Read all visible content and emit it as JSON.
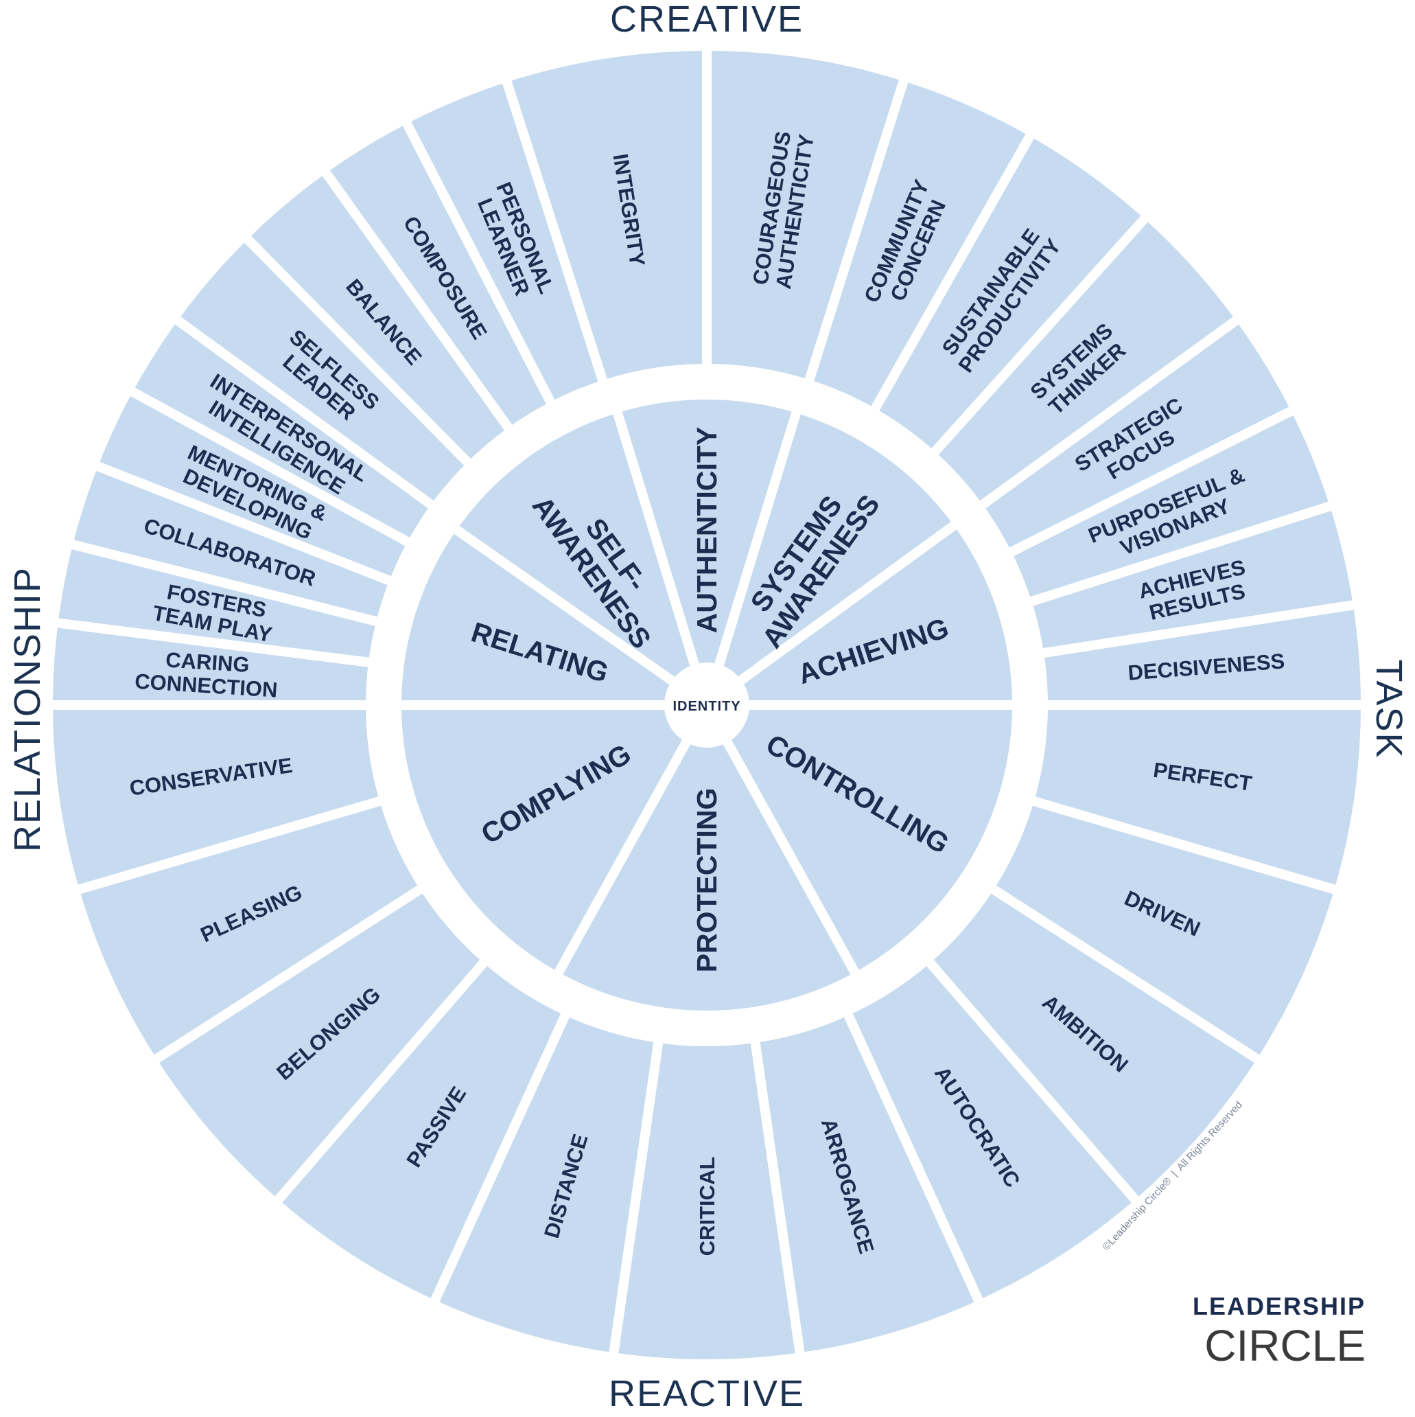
{
  "axes": {
    "top": "CREATIVE",
    "bottom": "REACTIVE",
    "left": "RELATIONSHIP",
    "right": "TASK"
  },
  "creative_competencies": [
    {
      "lines": [
        "DECISIVENESS"
      ]
    },
    {
      "lines": [
        "ACHIEVES",
        "RESULTS"
      ]
    },
    {
      "lines": [
        "PURPOSEFUL &",
        "VISIONARY"
      ]
    },
    {
      "lines": [
        "STRATEGIC",
        "FOCUS"
      ]
    },
    {
      "lines": [
        "SYSTEMS",
        "THINKER"
      ]
    },
    {
      "lines": [
        "SUSTAINABLE",
        "PRODUCTIVITY"
      ]
    },
    {
      "lines": [
        "COMMUNITY",
        "CONCERN"
      ]
    },
    {
      "lines": [
        "COURAGEOUS",
        "AUTHENTICITY"
      ]
    },
    {
      "lines": [
        "INTEGRITY"
      ]
    },
    {
      "lines": [
        "PERSONAL",
        "LEARNER"
      ]
    },
    {
      "lines": [
        "COMPOSURE"
      ]
    },
    {
      "lines": [
        "BALANCE"
      ]
    },
    {
      "lines": [
        "SELFLESS",
        "LEADER"
      ]
    },
    {
      "lines": [
        "INTERPERSONAL",
        "INTELLIGENCE"
      ]
    },
    {
      "lines": [
        "MENTORING &",
        "DEVELOPING"
      ]
    },
    {
      "lines": [
        "COLLABORATOR"
      ]
    },
    {
      "lines": [
        "FOSTERS",
        "TEAM PLAY"
      ]
    },
    {
      "lines": [
        "CARING",
        "CONNECTION"
      ]
    }
  ],
  "reactive_tendencies": [
    {
      "lines": [
        "CONSERVATIVE"
      ]
    },
    {
      "lines": [
        "PLEASING"
      ]
    },
    {
      "lines": [
        "BELONGING"
      ]
    },
    {
      "lines": [
        "PASSIVE"
      ]
    },
    {
      "lines": [
        "DISTANCE"
      ]
    },
    {
      "lines": [
        "CRITICAL"
      ]
    },
    {
      "lines": [
        "ARROGANCE"
      ]
    },
    {
      "lines": [
        "AUTOCRATIC"
      ]
    },
    {
      "lines": [
        "AMBITION"
      ]
    },
    {
      "lines": [
        "DRIVEN"
      ]
    },
    {
      "lines": [
        "PERFECT"
      ]
    }
  ],
  "creative_dimensions": [
    {
      "lines": [
        "ACHIEVING"
      ]
    },
    {
      "lines": [
        "SYSTEMS",
        "AWARENESS"
      ]
    },
    {
      "lines": [
        "AUTHENTICITY"
      ]
    },
    {
      "lines": [
        "SELF-",
        "AWARENESS"
      ]
    },
    {
      "lines": [
        "RELATING"
      ]
    }
  ],
  "reactive_dimensions": [
    {
      "lines": [
        "COMPLYING"
      ]
    },
    {
      "lines": [
        "PROTECTING"
      ]
    },
    {
      "lines": [
        "CONTROLLING"
      ]
    }
  ],
  "center": "IDENTITY",
  "copyright": "©Leadership Circle®  |  All Rights Reserved",
  "logo": {
    "line1": "LEADERSHIP",
    "line2": "CIRCLE"
  }
}
